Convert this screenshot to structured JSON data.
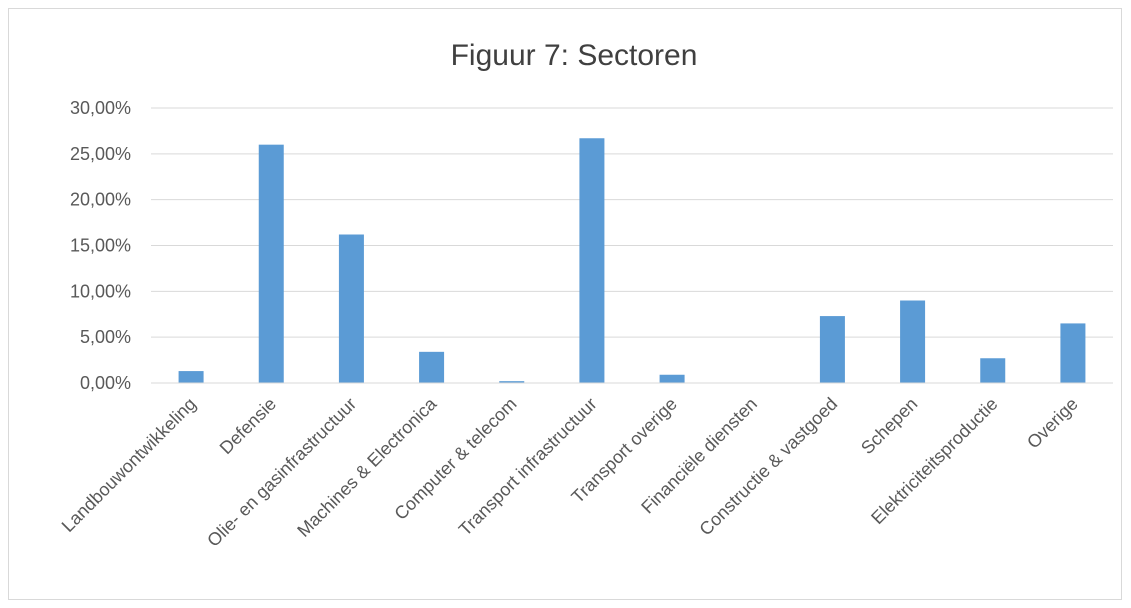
{
  "chart_data": {
    "type": "bar",
    "title": "Figuur 7: Sectoren",
    "xlabel": "",
    "ylabel": "",
    "categories": [
      "Landbouwontwikkeling",
      "Defensie",
      "Olie- en gasinfrastructuur",
      "Machines & Electronica",
      "Computer & telecom",
      "Transport infrastructuur",
      "Transport overige",
      "Financiële diensten",
      "Constructie & vastgoed",
      "Schepen",
      "Elektriciteitsproductie",
      "Overige"
    ],
    "values": [
      1.3,
      26.0,
      16.2,
      3.4,
      0.2,
      26.7,
      0.9,
      0.0,
      7.3,
      9.0,
      2.7,
      6.5
    ],
    "ylim": [
      0,
      30
    ],
    "yticks": [
      0,
      5,
      10,
      15,
      20,
      25,
      30
    ],
    "ytick_labels": [
      "0,00%",
      "5,00%",
      "10,00%",
      "15,00%",
      "20,00%",
      "25,00%",
      "30,00%"
    ],
    "grid": true,
    "legend": "none",
    "bar_color": "#5b9bd5",
    "grid_color": "#d9d9d9"
  }
}
